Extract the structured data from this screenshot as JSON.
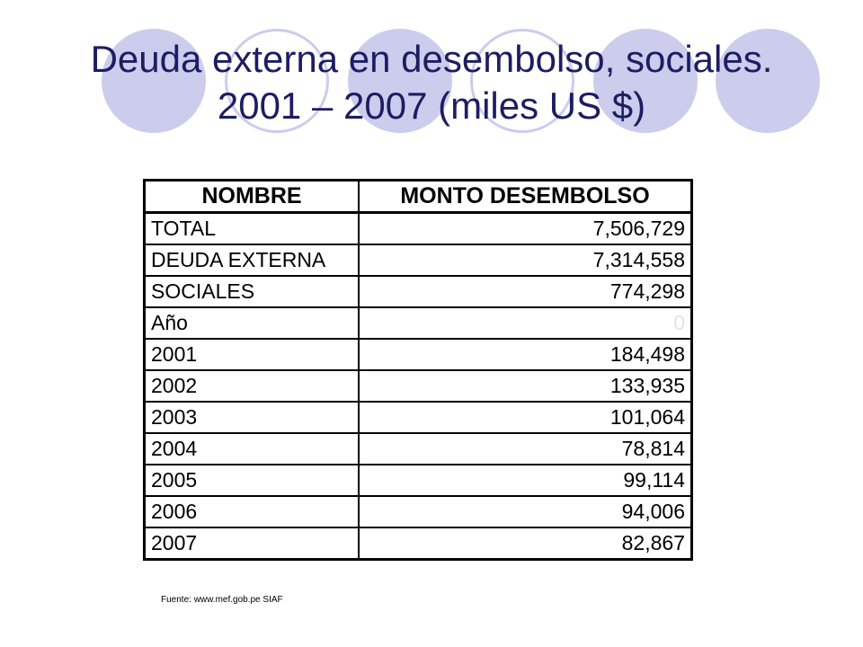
{
  "slide": {
    "title_line1": "Deuda externa en desembolso, sociales.",
    "title_line2": "2001 – 2007 (miles US $)",
    "decoration": {
      "circle_color": "#ccccec",
      "title_color": "#1d1d63"
    }
  },
  "table": {
    "headers": [
      "NOMBRE",
      "MONTO DESEMBOLSO"
    ],
    "rows": [
      {
        "name": "TOTAL",
        "value": "7,506,729"
      },
      {
        "name": "DEUDA EXTERNA",
        "value": "7,314,558"
      },
      {
        "name": "SOCIALES",
        "value": "774,298"
      },
      {
        "name": "Año",
        "value": "0"
      },
      {
        "name": "2001",
        "value": "184,498"
      },
      {
        "name": "2002",
        "value": "133,935"
      },
      {
        "name": "2003",
        "value": "101,064"
      },
      {
        "name": "2004",
        "value": "78,814"
      },
      {
        "name": "2005",
        "value": "99,114"
      },
      {
        "name": "2006",
        "value": "94,006"
      },
      {
        "name": "2007",
        "value": "82,867"
      }
    ]
  },
  "source": "Fuente: www.mef.gob.pe SIAF"
}
